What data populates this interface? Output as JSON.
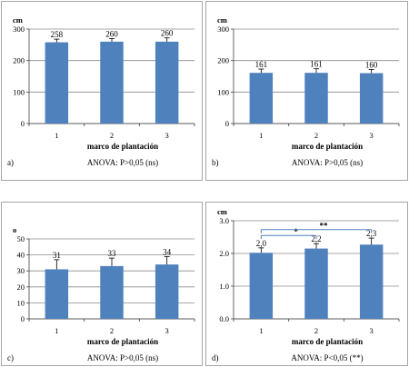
{
  "chart_data": [
    {
      "type": "bar",
      "panel_label": "a)",
      "ylabel": "cm",
      "xlabel": "marco de plantación",
      "note": "ANOVA: P>0,05 (ns)",
      "categories": [
        "1",
        "2",
        "3"
      ],
      "values": [
        258,
        260,
        260
      ],
      "errors": [
        10,
        10,
        12
      ],
      "data_labels": [
        "258",
        "260",
        "260"
      ],
      "ylim": [
        0,
        300
      ],
      "yticks": [
        "0",
        "100",
        "200",
        "300"
      ],
      "ytick_values": [
        0,
        100,
        200,
        300
      ],
      "grid": true,
      "bar_color": "#4f81bd"
    },
    {
      "type": "bar",
      "panel_label": "b)",
      "ylabel": "cm",
      "xlabel": "marco de plantación",
      "note": "ANOVA: P>0,05 (ns)",
      "categories": [
        "1",
        "2",
        "3"
      ],
      "values": [
        161,
        161,
        160
      ],
      "errors": [
        12,
        13,
        12
      ],
      "data_labels": [
        "161",
        "161",
        "160"
      ],
      "ylim": [
        0,
        300
      ],
      "yticks": [
        "0",
        "100",
        "200",
        "300"
      ],
      "ytick_values": [
        0,
        100,
        200,
        300
      ],
      "grid": true,
      "bar_color": "#4f81bd"
    },
    {
      "type": "bar",
      "panel_label": "c)",
      "ylabel": "o",
      "xlabel": "marco de plantación",
      "note": "ANOVA: P>0,05 (ns)",
      "categories": [
        "1",
        "2",
        "3"
      ],
      "values": [
        31,
        33,
        34
      ],
      "errors": [
        6,
        5,
        5
      ],
      "data_labels": [
        "31",
        "33",
        "34"
      ],
      "ylim": [
        0,
        50
      ],
      "yticks": [
        "0",
        "10",
        "20",
        "30",
        "40",
        "50"
      ],
      "ytick_values": [
        0,
        10,
        20,
        30,
        40,
        50
      ],
      "grid": true,
      "bar_color": "#4f81bd"
    },
    {
      "type": "bar",
      "panel_label": "d)",
      "ylabel": "cm",
      "xlabel": "marco de plantación",
      "note": "ANOVA: P<0,05 (**)",
      "categories": [
        "1",
        "2",
        "3"
      ],
      "values": [
        2.02,
        2.15,
        2.27
      ],
      "errors": [
        0.15,
        0.15,
        0.2
      ],
      "data_labels": [
        "2,0",
        "2,2",
        "2,3"
      ],
      "ylim": [
        0,
        3
      ],
      "yticks": [
        "0.0",
        "1.0",
        "2.0",
        "3.0"
      ],
      "ytick_values": [
        0,
        1,
        2,
        3
      ],
      "grid": true,
      "bar_color": "#4f81bd",
      "significance": [
        {
          "from": 1,
          "to": 2,
          "label": "*",
          "level": 2.55
        },
        {
          "from": 1,
          "to": 3,
          "label": "**",
          "level": 2.73
        }
      ]
    }
  ]
}
